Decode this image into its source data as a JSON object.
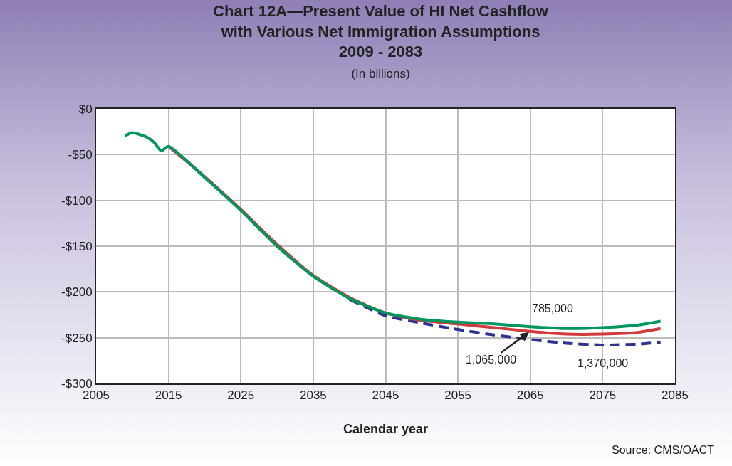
{
  "chart_data": {
    "type": "line",
    "title": "Chart 12A—Present Value of HI Net Cashflow\nwith Various Net Immigration Assumptions\n2009 - 2083",
    "subtitle": "(In billions)",
    "xlabel": "Calendar year",
    "x": [
      2009,
      2010,
      2012,
      2013,
      2014,
      2015,
      2020,
      2025,
      2030,
      2035,
      2040,
      2045,
      2050,
      2055,
      2060,
      2065,
      2070,
      2075,
      2080,
      2083
    ],
    "series": [
      {
        "name": "785,000",
        "color": "#00965e",
        "line_style": "solid",
        "values": [
          -29.5,
          -26,
          -31,
          -36.5,
          -46,
          -41,
          -75,
          -111,
          -150,
          -183,
          -207,
          -223,
          -230,
          -233,
          -235,
          -238,
          -240,
          -239,
          -236,
          -232
        ]
      },
      {
        "name": "1,065,000",
        "color": "#d13b3b",
        "line_style": "solid",
        "values": [
          null,
          null,
          null,
          null,
          null,
          -41,
          -74,
          -110,
          -148,
          -182,
          -206,
          -223,
          -231,
          -235,
          -239,
          -243,
          -246,
          -246,
          -244,
          -240
        ]
      },
      {
        "name": "1,370,000",
        "color": "#2e3192",
        "line_style": "dashed",
        "values": [
          null,
          null,
          null,
          null,
          null,
          null,
          null,
          null,
          null,
          null,
          -208,
          -226,
          -234,
          -241,
          -247,
          -252,
          -256,
          -258,
          -257,
          -255
        ]
      }
    ],
    "xlim": [
      2005,
      2085
    ],
    "xticks": [
      2005,
      2015,
      2025,
      2035,
      2045,
      2055,
      2065,
      2075,
      2085
    ],
    "ylim": [
      -300,
      0
    ],
    "yticks": [
      {
        "value": 0,
        "label": "$0"
      },
      {
        "value": -50,
        "label": "-$50"
      },
      {
        "value": -100,
        "label": "-$100"
      },
      {
        "value": -150,
        "label": "-$150"
      },
      {
        "value": -200,
        "label": "-$200"
      },
      {
        "value": -250,
        "label": "-$250"
      },
      {
        "value": -300,
        "label": "-$300"
      }
    ],
    "grid": true,
    "legend": false,
    "marker": "none",
    "annotations": [
      "Source: CMS/OACT"
    ]
  }
}
